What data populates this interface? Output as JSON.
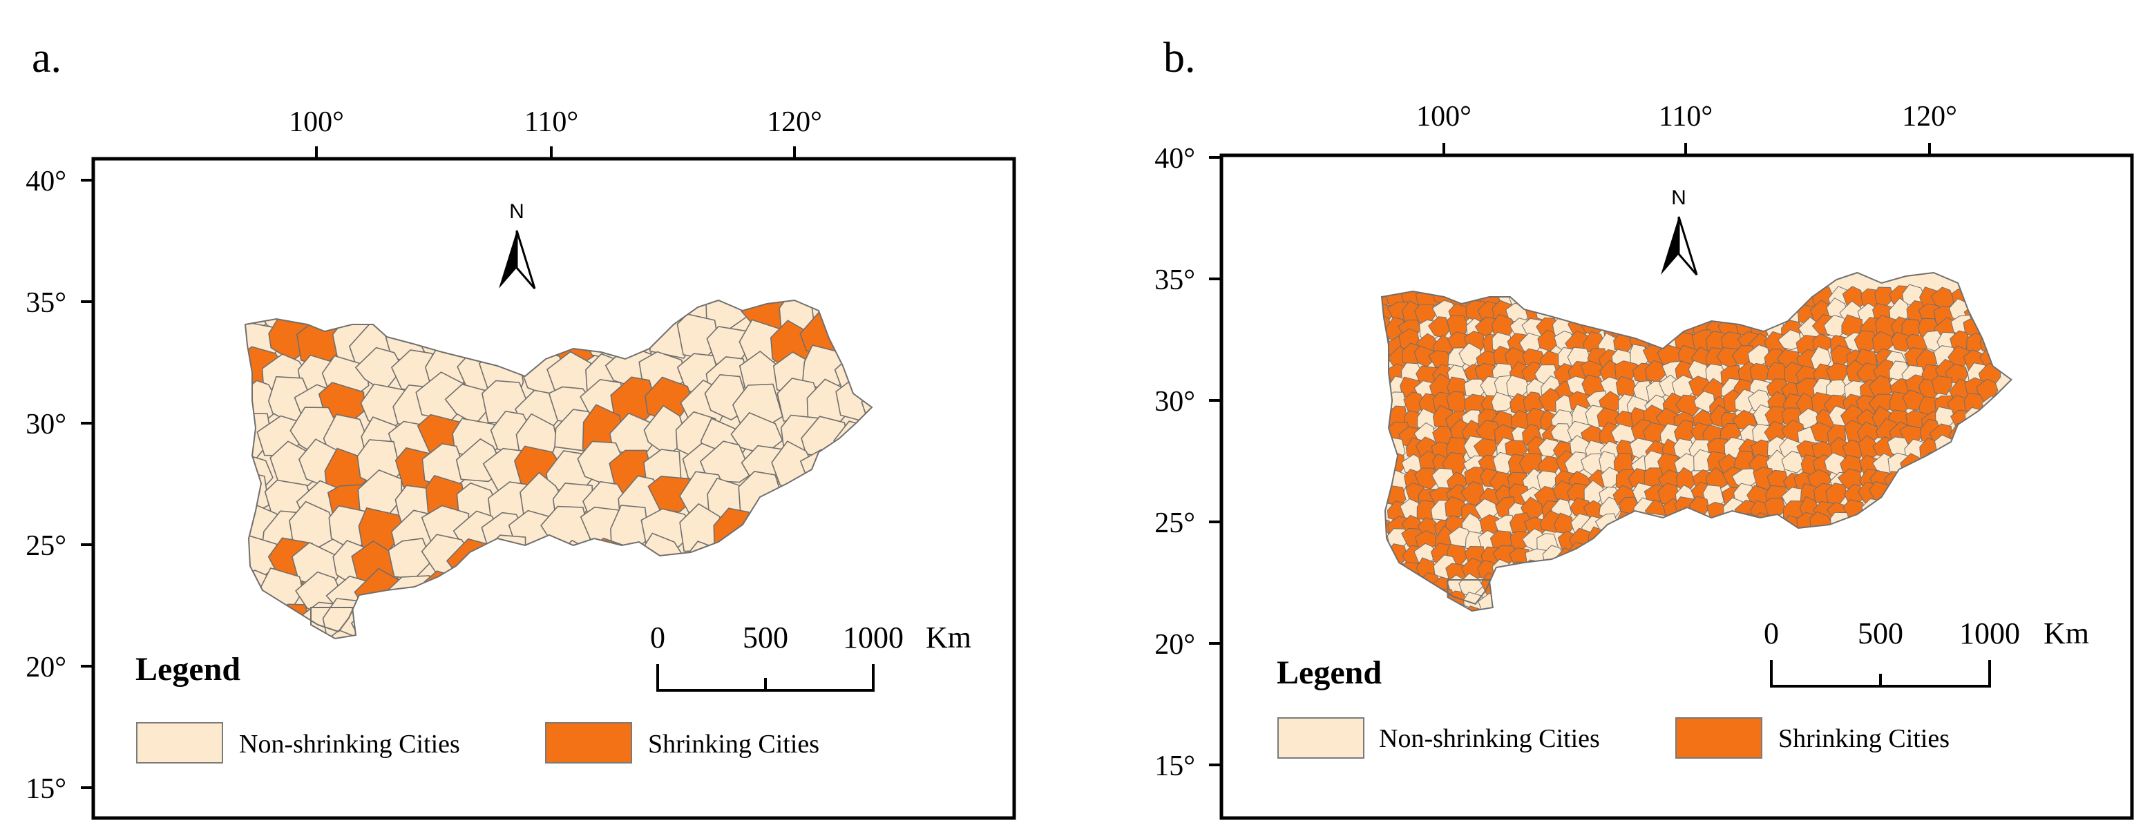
{
  "colors": {
    "non_shrinking": "#fde9cd",
    "shrinking": "#f47216",
    "boundary": "#6f6f6f",
    "frame": "#000000"
  },
  "panels": [
    {
      "label": "a.",
      "lon_ticks": [
        "100°",
        "110°",
        "120°"
      ],
      "lat_ticks": [
        "40°",
        "35°",
        "30°",
        "25°",
        "20°",
        "15°"
      ],
      "north": "N",
      "legend": {
        "title": "Legend",
        "non_shrinking": "Non-shrinking Cities",
        "shrinking": "Shrinking Cities"
      },
      "scale": {
        "ticks": [
          "0",
          "500",
          "1000"
        ],
        "unit": "Km"
      },
      "shrinking_share": 0.18
    },
    {
      "label": "b.",
      "lon_ticks": [
        "100°",
        "110°",
        "120°"
      ],
      "lat_ticks": [
        "40°",
        "35°",
        "30°",
        "25°",
        "20°",
        "15°"
      ],
      "north": "N",
      "legend": {
        "title": "Legend",
        "non_shrinking": "Non-shrinking Cities",
        "shrinking": "Shrinking Cities"
      },
      "scale": {
        "ticks": [
          "0",
          "500",
          "1000"
        ],
        "unit": "Km"
      },
      "shrinking_share": 0.7
    }
  ]
}
